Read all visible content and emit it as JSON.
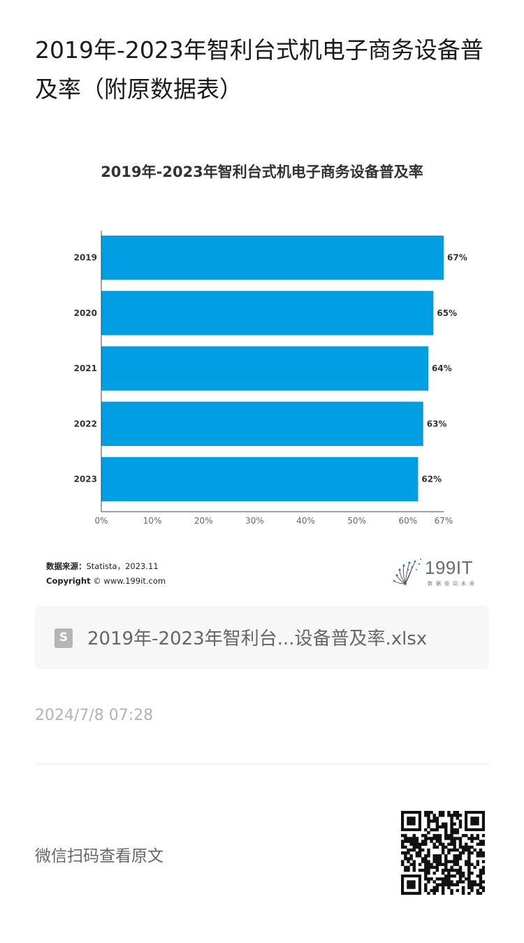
{
  "page": {
    "title": "2019年-2023年智利台式机电子商务设备普及率（附原数据表）"
  },
  "chart_data": {
    "type": "bar",
    "orientation": "horizontal",
    "title": "2019年-2023年智利台式机电子商务设备普及率",
    "categories": [
      "2019",
      "2020",
      "2021",
      "2022",
      "2023"
    ],
    "values": [
      67,
      65,
      64,
      63,
      62
    ],
    "value_labels": [
      "67%",
      "65%",
      "64%",
      "63%",
      "62%"
    ],
    "x_ticks": [
      "0%",
      "10%",
      "20%",
      "30%",
      "40%",
      "50%",
      "60%",
      "67%"
    ],
    "x_tick_values": [
      0,
      10,
      20,
      30,
      40,
      50,
      60,
      67
    ],
    "xlim": [
      0,
      67
    ],
    "grid": false,
    "bar_color": "#009fe3"
  },
  "source": {
    "label": "数据来源：",
    "value": "Statista，2023.11",
    "copyright_label": "Copyright",
    "copyright_value": "© www.199it.com"
  },
  "logo": {
    "text": "199IT",
    "subtitle": "数据驱动未来"
  },
  "attachment": {
    "icon": "spreadsheet-file-icon",
    "icon_letter": "S",
    "filename": "2019年-2023年智利台...设备普及率.xlsx"
  },
  "meta": {
    "date": "2024/7/8 07:28"
  },
  "footer": {
    "scan_text": "微信扫码查看原文"
  }
}
